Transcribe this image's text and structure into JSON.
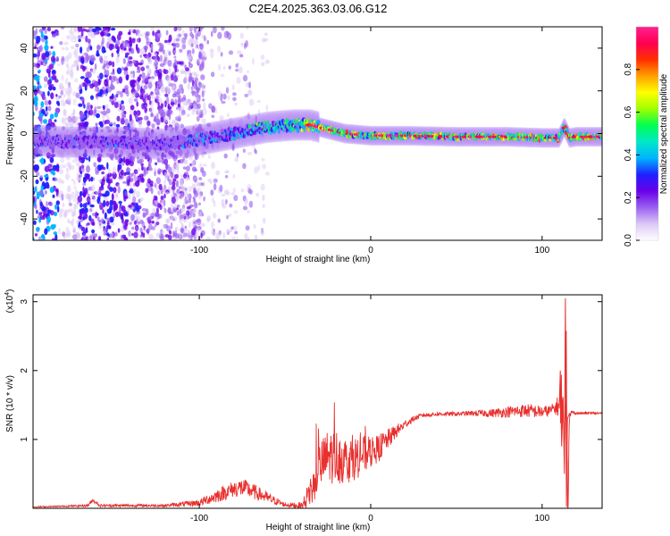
{
  "page_title": "C2E4.2025.363.03.06.G12",
  "chart_data": [
    {
      "type": "heatmap",
      "name": "spectrogram",
      "xlabel": "Height of straight line (km)",
      "ylabel": "Frequency (Hz)",
      "xlim": [
        -197,
        135
      ],
      "ylim": [
        -50,
        50
      ],
      "xticks": [
        -100,
        0,
        100
      ],
      "xtick_labels": [
        "-100",
        "0",
        "100"
      ],
      "yticks": [
        -40,
        -20,
        0,
        20,
        40
      ],
      "ytick_labels": [
        "-40",
        "-20",
        "0",
        "20",
        "40"
      ],
      "ridge": {
        "x": [
          -197,
          -180,
          -150,
          -120,
          -100,
          -80,
          -60,
          -45,
          -35,
          -25,
          -15,
          0,
          20,
          50,
          80,
          100,
          110,
          113,
          116,
          120,
          135
        ],
        "y": [
          -3,
          -4,
          -4,
          -5,
          -3,
          0,
          3,
          4,
          4,
          2,
          0,
          -1,
          -1,
          -1.5,
          -1.5,
          -2,
          -2,
          3,
          -2,
          -1.5,
          -1.5
        ]
      },
      "colorbar": {
        "label": "Normalized spectral amplitude",
        "range": [
          0,
          1
        ],
        "ticks": [
          0.0,
          0.2,
          0.4,
          0.6,
          0.8
        ],
        "tick_labels": [
          "0.0",
          "0.2",
          "0.4",
          "0.6",
          "0.8"
        ],
        "colors": [
          "#ffffff",
          "#dcc8f5",
          "#9a60f0",
          "#6a00e8",
          "#2020ff",
          "#00b4ff",
          "#00e8c8",
          "#00ff50",
          "#a0ff00",
          "#ffff00",
          "#ffa000",
          "#ff3000",
          "#ff0050",
          "#ff2090"
        ]
      }
    },
    {
      "type": "line",
      "name": "snr",
      "xlabel": "Height of straight line (km)",
      "ylabel": "SNR (10 * v/v)",
      "scale_label": "(x10",
      "scale_exponent": "4",
      "scale_suffix": ")",
      "xlim": [
        -197,
        135
      ],
      "ylim": [
        0,
        3.1
      ],
      "xticks": [
        -100,
        0,
        100
      ],
      "xtick_labels": [
        "-100",
        "0",
        "100"
      ],
      "yticks": [
        1,
        2,
        3
      ],
      "ytick_labels": [
        "1",
        "2",
        "3"
      ],
      "color": "#e8302e",
      "series": [
        {
          "name": "SNR",
          "x": [
            -197,
            -180,
            -165,
            -162,
            -158,
            -140,
            -120,
            -100,
            -90,
            -80,
            -75,
            -70,
            -60,
            -50,
            -40,
            -35,
            -30,
            -25,
            -20,
            -15,
            -10,
            -5,
            0,
            5,
            10,
            15,
            20,
            25,
            30,
            40,
            50,
            60,
            70,
            80,
            90,
            100,
            105,
            108,
            110,
            111,
            112,
            113,
            114,
            115,
            116,
            117,
            120,
            125,
            130,
            135
          ],
          "y": [
            0.02,
            0.03,
            0.04,
            0.12,
            0.04,
            0.04,
            0.04,
            0.08,
            0.18,
            0.28,
            0.3,
            0.26,
            0.15,
            0.05,
            0.04,
            0.25,
            0.6,
            0.75,
            0.75,
            0.7,
            0.72,
            0.78,
            0.8,
            0.88,
            1.0,
            1.12,
            1.22,
            1.3,
            1.35,
            1.37,
            1.37,
            1.38,
            1.38,
            1.4,
            1.42,
            1.4,
            1.42,
            1.46,
            1.5,
            1.7,
            1.4,
            0.6,
            2.5,
            0.1,
            1.3,
            1.4,
            1.38,
            1.38,
            1.38,
            1.38
          ],
          "noise": [
            0.01,
            0.01,
            0.02,
            0.03,
            0.02,
            0.02,
            0.02,
            0.05,
            0.1,
            0.12,
            0.14,
            0.12,
            0.08,
            0.03,
            0.05,
            0.25,
            0.35,
            0.4,
            0.4,
            0.35,
            0.32,
            0.3,
            0.22,
            0.2,
            0.15,
            0.1,
            0.06,
            0.04,
            0.03,
            0.03,
            0.03,
            0.04,
            0.06,
            0.08,
            0.1,
            0.09,
            0.08,
            0.1,
            0.2,
            0.5,
            0.4,
            0.4,
            0.6,
            0.4,
            0.1,
            0.02,
            0.02,
            0.02,
            0.02,
            0.02
          ]
        }
      ]
    }
  ]
}
